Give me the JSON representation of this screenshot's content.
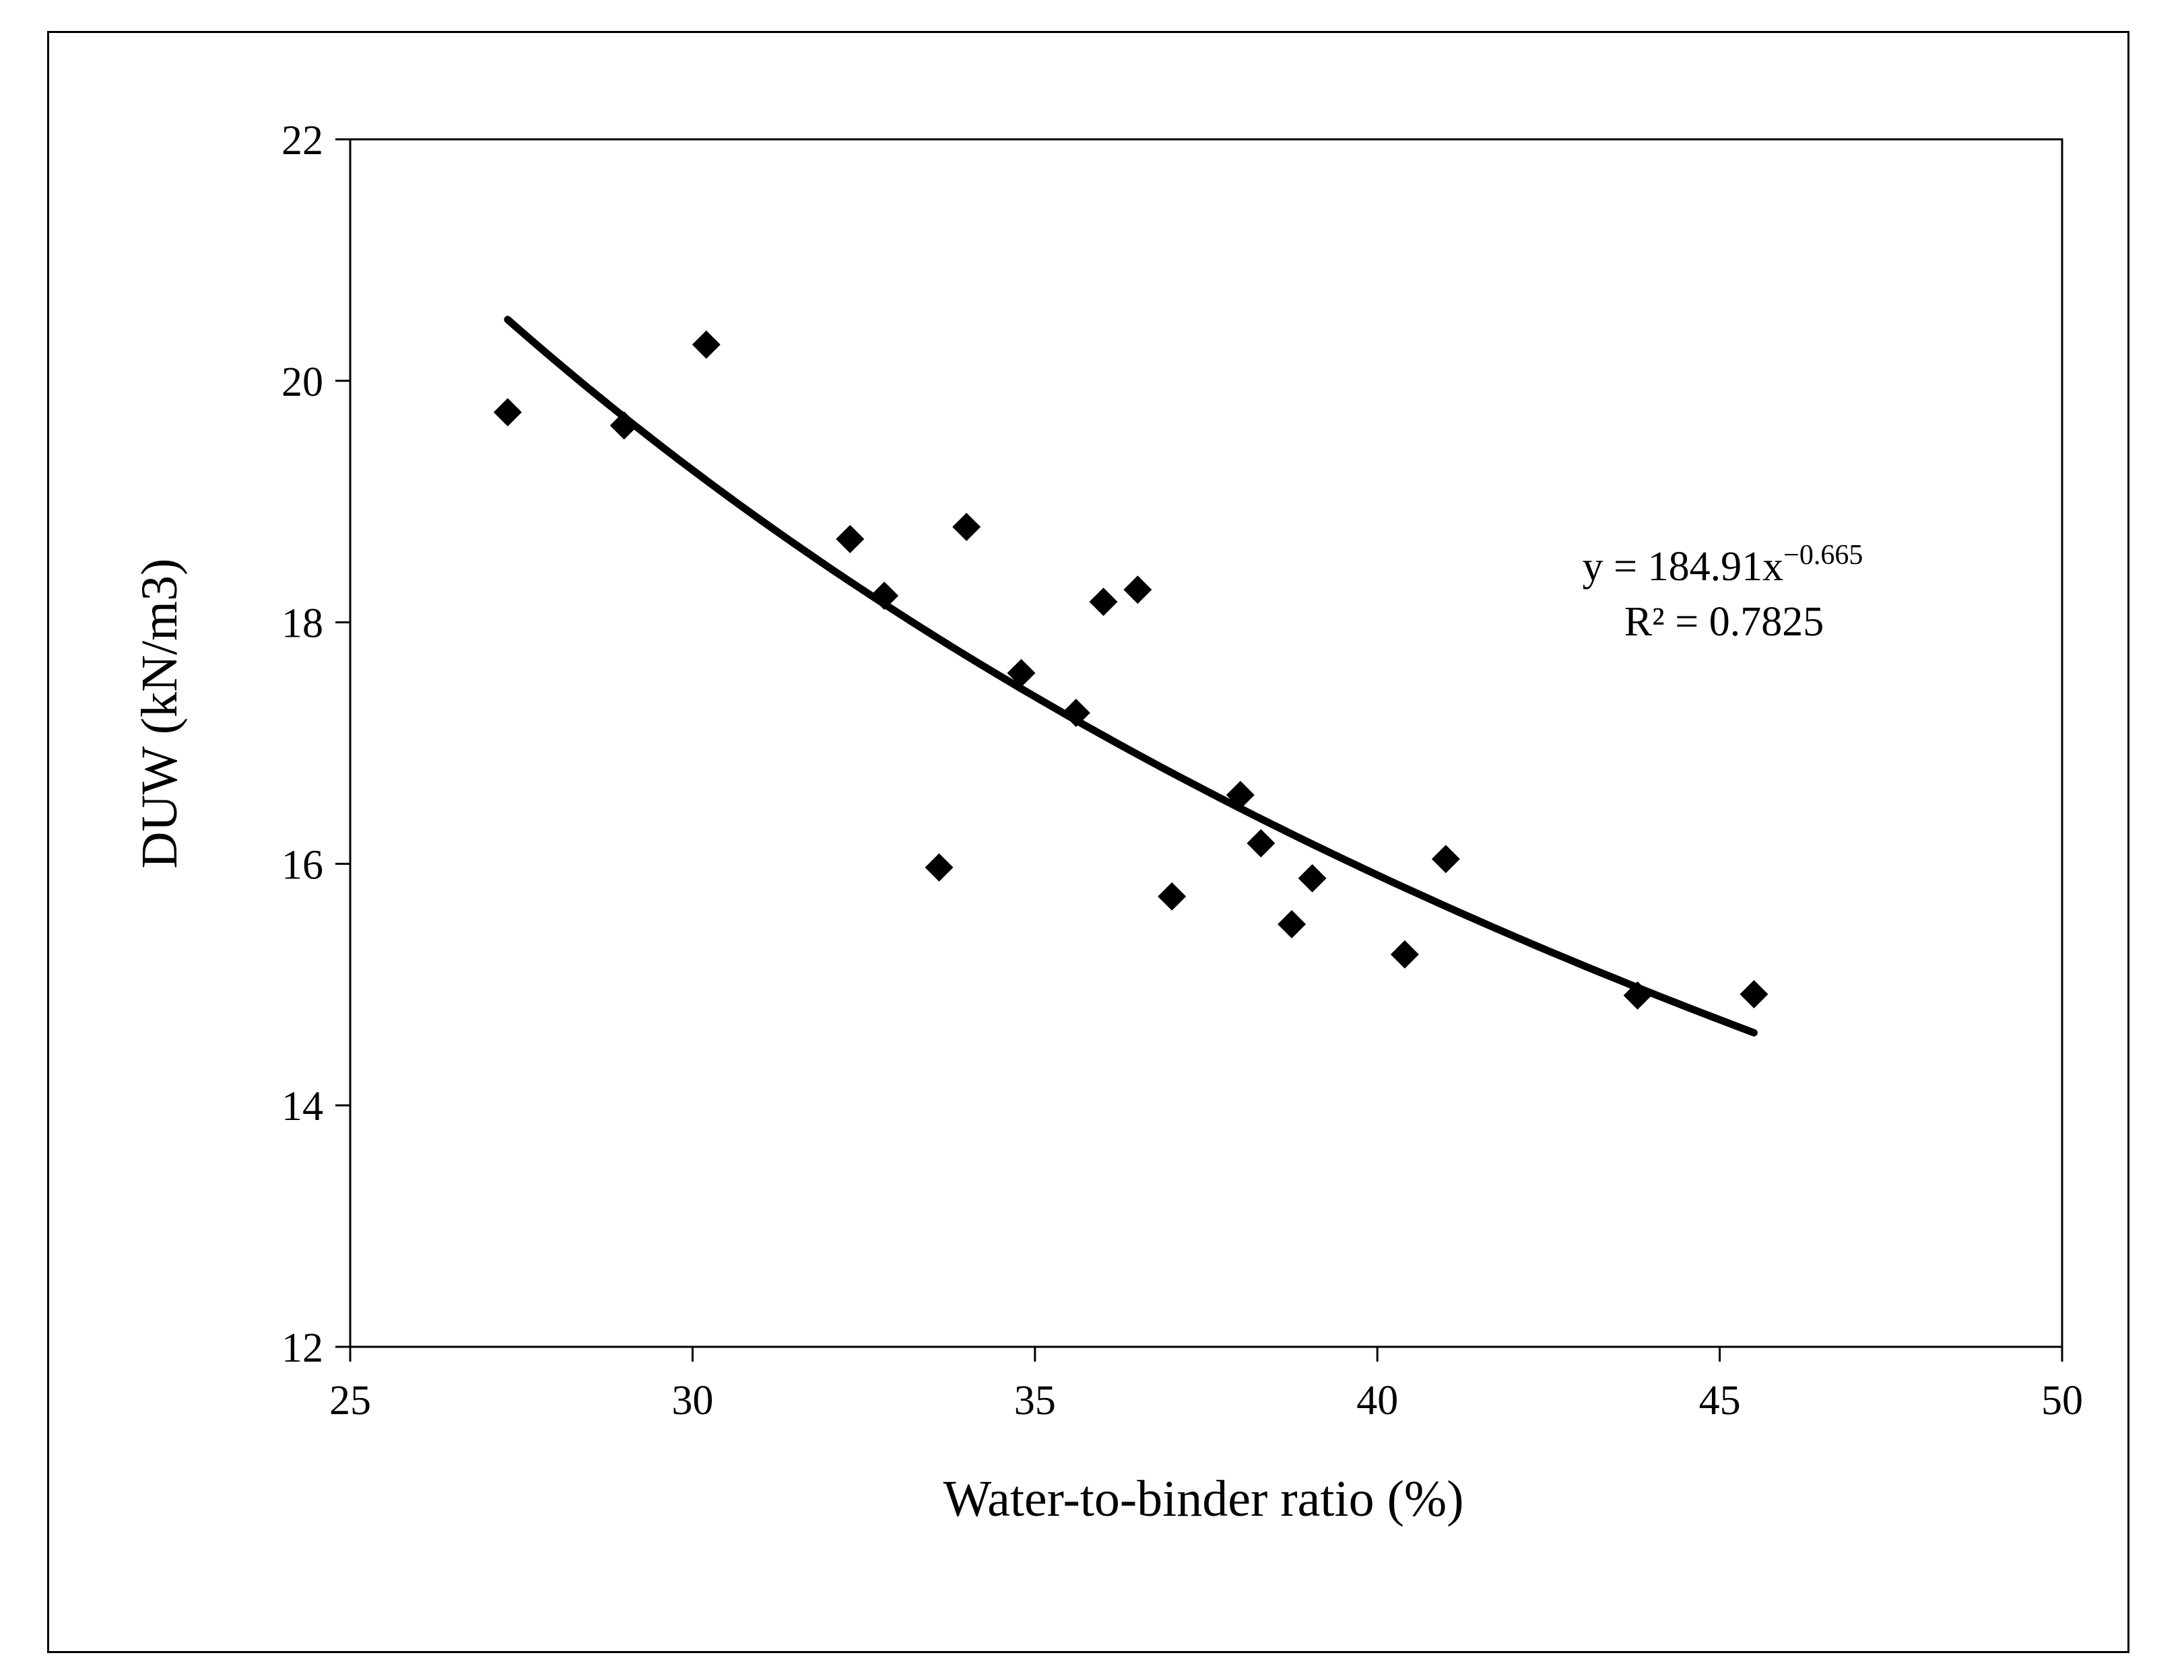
{
  "chart_data": {
    "type": "scatter",
    "title": "",
    "xlabel": "Water-to-binder ratio  (%)",
    "ylabel": "DUW (kN/m3)",
    "xlim": [
      25,
      50
    ],
    "ylim": [
      12,
      22
    ],
    "xticks": [
      25,
      30,
      35,
      40,
      45,
      50
    ],
    "yticks": [
      12,
      14,
      16,
      18,
      20,
      22
    ],
    "xtick_labels": [
      "25",
      "30",
      "35",
      "40",
      "45",
      "50"
    ],
    "ytick_labels": [
      "12",
      "14",
      "16",
      "18",
      "20",
      "22"
    ],
    "grid": false,
    "legend": "none",
    "marker": "diamond",
    "marker_color": "#000000",
    "series": [
      {
        "name": "DUW",
        "points": [
          {
            "x": 27.3,
            "y": 19.74
          },
          {
            "x": 29.0,
            "y": 19.63
          },
          {
            "x": 30.2,
            "y": 20.3
          },
          {
            "x": 32.3,
            "y": 18.69
          },
          {
            "x": 32.8,
            "y": 18.22
          },
          {
            "x": 33.6,
            "y": 15.97
          },
          {
            "x": 34.0,
            "y": 18.79
          },
          {
            "x": 34.8,
            "y": 17.58
          },
          {
            "x": 35.6,
            "y": 17.25
          },
          {
            "x": 36.0,
            "y": 18.17
          },
          {
            "x": 36.5,
            "y": 18.27
          },
          {
            "x": 37.0,
            "y": 15.73
          },
          {
            "x": 38.0,
            "y": 16.57
          },
          {
            "x": 38.3,
            "y": 16.17
          },
          {
            "x": 38.75,
            "y": 15.5
          },
          {
            "x": 39.05,
            "y": 15.88
          },
          {
            "x": 40.4,
            "y": 15.25
          },
          {
            "x": 41.0,
            "y": 16.04
          },
          {
            "x": 43.8,
            "y": 14.91
          },
          {
            "x": 45.5,
            "y": 14.92
          }
        ]
      }
    ],
    "trendline": {
      "type": "power",
      "coefficient": 184.91,
      "exponent": -0.665,
      "x_range": [
        27.3,
        45.5
      ],
      "color": "#000000"
    },
    "annotations": {
      "equation_base": "y = 184.91x",
      "equation_exponent": "−0.665",
      "r_squared": "R² = 0.7825"
    }
  }
}
